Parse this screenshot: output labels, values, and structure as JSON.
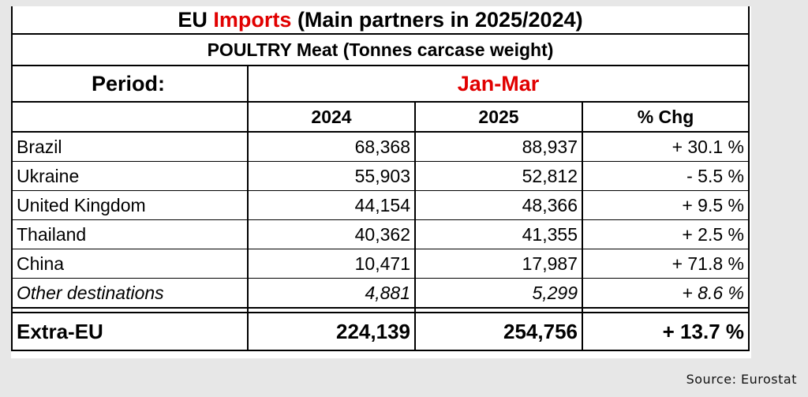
{
  "title": {
    "prefix": "EU ",
    "highlight": "Imports",
    "suffix": " (Main partners in 2025/2024)"
  },
  "subtitle": "POULTRY Meat (Tonnes carcase weight)",
  "period": {
    "label": "Period:",
    "value": "Jan-Mar"
  },
  "columns": [
    "2024",
    "2025",
    "% Chg"
  ],
  "rows": [
    {
      "country": "Brazil",
      "y2024": "68,368",
      "y2025": "88,937",
      "chg": "+ 30.1 %"
    },
    {
      "country": "Ukraine",
      "y2024": "55,903",
      "y2025": "52,812",
      "chg": "- 5.5 %"
    },
    {
      "country": "United Kingdom",
      "y2024": "44,154",
      "y2025": "48,366",
      "chg": "+ 9.5 %"
    },
    {
      "country": "Thailand",
      "y2024": "40,362",
      "y2025": "41,355",
      "chg": "+ 2.5 %"
    },
    {
      "country": "China",
      "y2024": "10,471",
      "y2025": "17,987",
      "chg": "+ 71.8 %"
    },
    {
      "country": "Other destinations",
      "y2024": "4,881",
      "y2025": "5,299",
      "chg": "+ 8.6 %"
    }
  ],
  "total": {
    "country": "Extra-EU",
    "y2024": "224,139",
    "y2025": "254,756",
    "chg": "+ 13.7 %"
  },
  "source": "Source: Eurostat",
  "colors": {
    "accent_red": "#e10000",
    "background": "#e7e7e7"
  }
}
